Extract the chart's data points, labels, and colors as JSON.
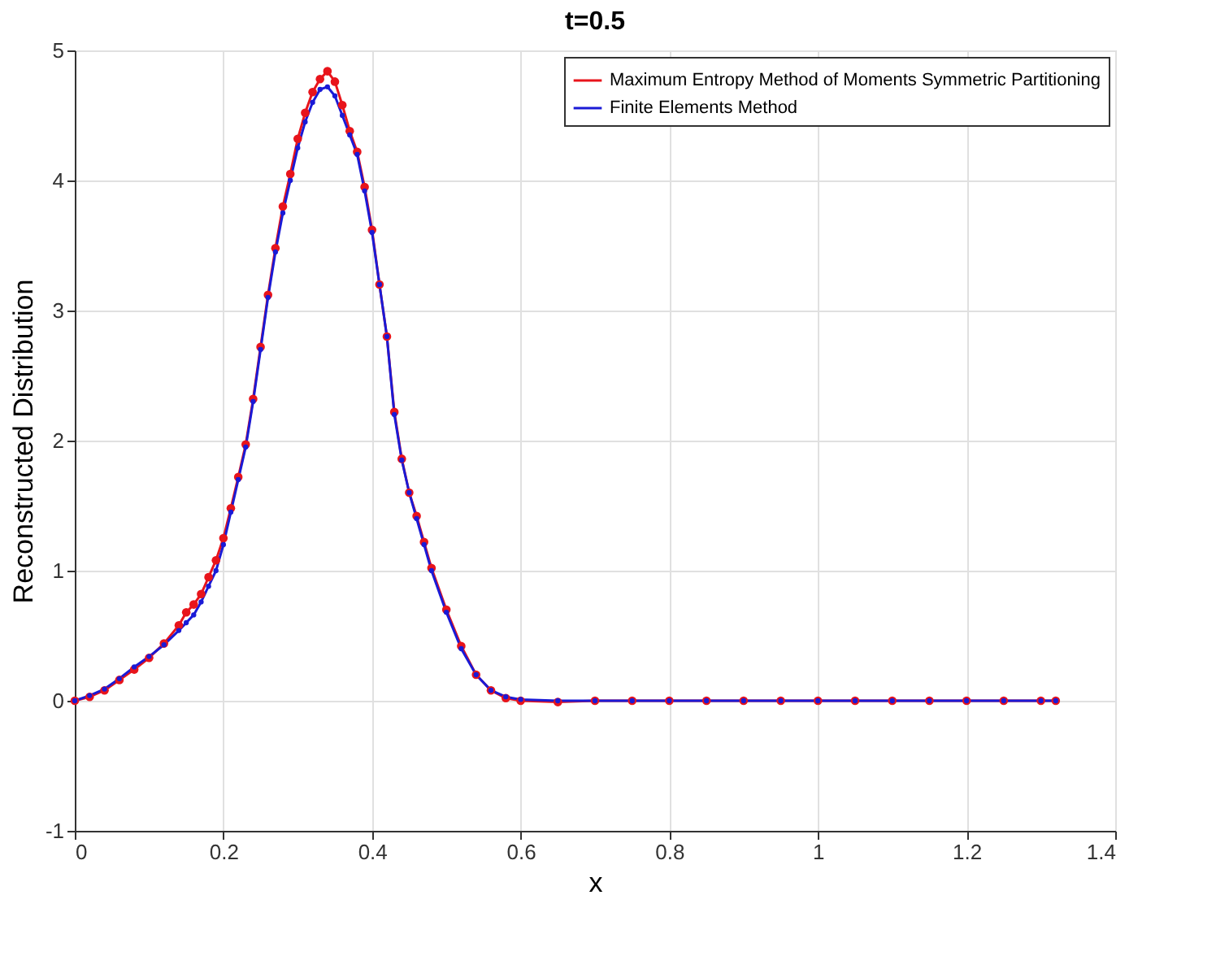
{
  "chart_data": {
    "type": "line",
    "title": "t=0.5",
    "xlabel": "x",
    "ylabel": "Reconstructed Distribution",
    "x": [
      0,
      0.02,
      0.04,
      0.06,
      0.08,
      0.1,
      0.12,
      0.14,
      0.15,
      0.16,
      0.17,
      0.18,
      0.19,
      0.2,
      0.21,
      0.22,
      0.23,
      0.24,
      0.25,
      0.26,
      0.27,
      0.28,
      0.29,
      0.3,
      0.31,
      0.32,
      0.33,
      0.34,
      0.35,
      0.36,
      0.37,
      0.38,
      0.39,
      0.4,
      0.41,
      0.42,
      0.43,
      0.44,
      0.45,
      0.46,
      0.47,
      0.48,
      0.5,
      0.52,
      0.54,
      0.56,
      0.58,
      0.6,
      0.65,
      0.7,
      0.75,
      0.8,
      0.85,
      0.9,
      0.95,
      1.0,
      1.05,
      1.1,
      1.15,
      1.2,
      1.25,
      1.3,
      1.32
    ],
    "series": [
      {
        "name": "Maximum Entropy Method of Moments Symmetric Partitioning",
        "color": "#e8141b",
        "values": [
          0,
          0.03,
          0.08,
          0.16,
          0.24,
          0.33,
          0.44,
          0.58,
          0.68,
          0.74,
          0.82,
          0.95,
          1.08,
          1.25,
          1.48,
          1.72,
          1.97,
          2.32,
          2.72,
          3.12,
          3.48,
          3.8,
          4.05,
          4.32,
          4.52,
          4.68,
          4.78,
          4.84,
          4.76,
          4.58,
          4.38,
          4.22,
          3.95,
          3.62,
          3.2,
          2.8,
          2.22,
          1.86,
          1.6,
          1.42,
          1.22,
          1.02,
          0.7,
          0.42,
          0.2,
          0.08,
          0.02,
          0.0,
          -0.01,
          0,
          0,
          0,
          0,
          0,
          0,
          0,
          0,
          0,
          0,
          0,
          0,
          0,
          0
        ]
      },
      {
        "name": "Finite Elements Method",
        "color": "#1a1ad6",
        "values": [
          0,
          0.04,
          0.09,
          0.17,
          0.26,
          0.34,
          0.43,
          0.54,
          0.6,
          0.66,
          0.76,
          0.88,
          1.0,
          1.2,
          1.45,
          1.7,
          1.95,
          2.3,
          2.7,
          3.1,
          3.45,
          3.75,
          4.0,
          4.25,
          4.45,
          4.6,
          4.7,
          4.72,
          4.65,
          4.5,
          4.35,
          4.2,
          3.92,
          3.6,
          3.2,
          2.8,
          2.2,
          1.85,
          1.6,
          1.4,
          1.2,
          1.0,
          0.68,
          0.4,
          0.2,
          0.08,
          0.03,
          0.01,
          0,
          0,
          0,
          0,
          0,
          0,
          0,
          0,
          0,
          0,
          0,
          0,
          0,
          0,
          0
        ]
      }
    ],
    "xlim": [
      0,
      1.4
    ],
    "xticks": [
      0,
      0.2,
      0.4,
      0.6,
      0.8,
      1,
      1.2,
      1.4
    ],
    "ylim": [
      -1,
      5
    ],
    "yticks": [
      -1,
      0,
      1,
      2,
      3,
      4,
      5
    ],
    "grid": true,
    "legend": "top right",
    "marker": "circle",
    "line_style": "solid"
  }
}
